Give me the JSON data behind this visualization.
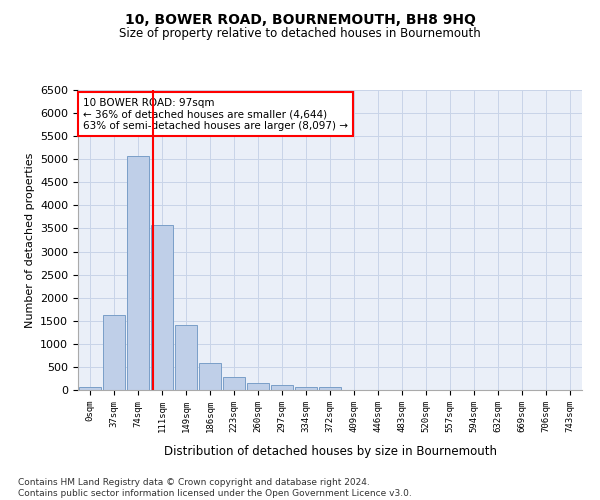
{
  "title": "10, BOWER ROAD, BOURNEMOUTH, BH8 9HQ",
  "subtitle": "Size of property relative to detached houses in Bournemouth",
  "xlabel": "Distribution of detached houses by size in Bournemouth",
  "ylabel": "Number of detached properties",
  "footer_line1": "Contains HM Land Registry data © Crown copyright and database right 2024.",
  "footer_line2": "Contains public sector information licensed under the Open Government Licence v3.0.",
  "bar_labels": [
    "0sqm",
    "37sqm",
    "74sqm",
    "111sqm",
    "149sqm",
    "186sqm",
    "223sqm",
    "260sqm",
    "297sqm",
    "334sqm",
    "372sqm",
    "409sqm",
    "446sqm",
    "483sqm",
    "520sqm",
    "557sqm",
    "594sqm",
    "632sqm",
    "669sqm",
    "706sqm",
    "743sqm"
  ],
  "bar_values": [
    70,
    1630,
    5080,
    3570,
    1410,
    590,
    290,
    145,
    100,
    75,
    60,
    0,
    0,
    0,
    0,
    0,
    0,
    0,
    0,
    0,
    0
  ],
  "bar_color": "#bfcfe8",
  "bar_edge_color": "#7a9fc8",
  "property_line_x": 2.62,
  "property_line_color": "red",
  "annotation_text": "10 BOWER ROAD: 97sqm\n← 36% of detached houses are smaller (4,644)\n63% of semi-detached houses are larger (8,097) →",
  "annotation_box_color": "red",
  "ylim": [
    0,
    6500
  ],
  "yticks": [
    0,
    500,
    1000,
    1500,
    2000,
    2500,
    3000,
    3500,
    4000,
    4500,
    5000,
    5500,
    6000,
    6500
  ],
  "grid_color": "#c8d4e8",
  "bg_color": "#eaeff8"
}
